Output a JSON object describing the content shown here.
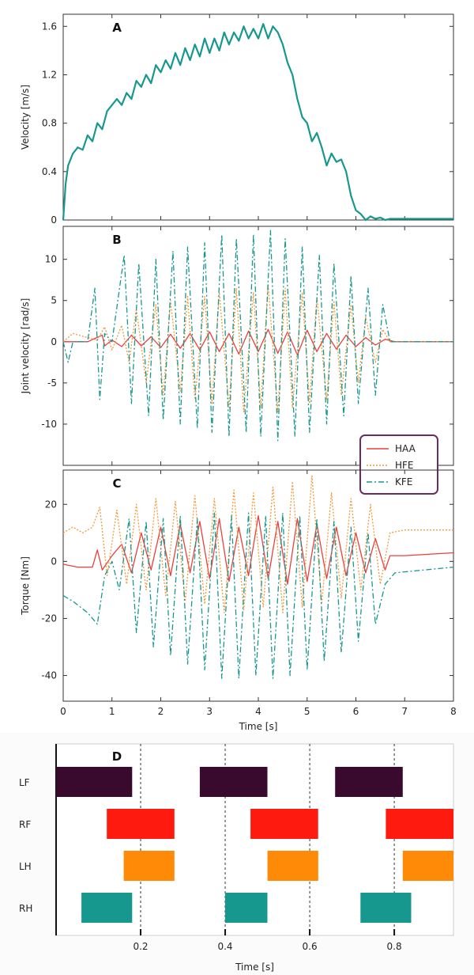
{
  "chart_data": [
    {
      "panel": "A",
      "type": "line",
      "ylabel": "Velocity [m/s]",
      "xlim": [
        0,
        8
      ],
      "ylim": [
        0,
        1.7
      ],
      "yticks": [
        0,
        0.4,
        0.8,
        1.2,
        1.6
      ],
      "xticks": [
        0,
        1,
        2,
        3,
        4,
        5,
        6,
        7,
        8
      ],
      "series": [
        {
          "name": "",
          "color": "#17988f",
          "x": [
            0,
            0.05,
            0.1,
            0.2,
            0.3,
            0.4,
            0.5,
            0.6,
            0.7,
            0.8,
            0.9,
            1.0,
            1.1,
            1.2,
            1.3,
            1.4,
            1.5,
            1.6,
            1.7,
            1.8,
            1.9,
            2.0,
            2.1,
            2.2,
            2.3,
            2.4,
            2.5,
            2.6,
            2.7,
            2.8,
            2.9,
            3.0,
            3.1,
            3.2,
            3.3,
            3.4,
            3.5,
            3.6,
            3.7,
            3.8,
            3.9,
            4.0,
            4.1,
            4.2,
            4.3,
            4.4,
            4.5,
            4.6,
            4.7,
            4.8,
            4.9,
            5.0,
            5.1,
            5.2,
            5.3,
            5.4,
            5.5,
            5.6,
            5.7,
            5.8,
            5.9,
            6.0,
            6.1,
            6.2,
            6.3,
            6.4,
            6.5,
            6.6,
            6.7,
            7.0,
            7.5,
            8.0
          ],
          "y": [
            0,
            0.3,
            0.45,
            0.55,
            0.6,
            0.58,
            0.7,
            0.65,
            0.8,
            0.75,
            0.9,
            0.95,
            1.0,
            0.95,
            1.05,
            1.0,
            1.15,
            1.1,
            1.2,
            1.13,
            1.28,
            1.22,
            1.32,
            1.25,
            1.38,
            1.28,
            1.42,
            1.32,
            1.45,
            1.35,
            1.5,
            1.38,
            1.5,
            1.4,
            1.55,
            1.45,
            1.55,
            1.48,
            1.6,
            1.5,
            1.58,
            1.5,
            1.62,
            1.5,
            1.6,
            1.55,
            1.45,
            1.3,
            1.2,
            1.0,
            0.85,
            0.8,
            0.65,
            0.72,
            0.6,
            0.45,
            0.55,
            0.48,
            0.5,
            0.4,
            0.2,
            0.08,
            0.05,
            0.0,
            0.03,
            0.01,
            0.02,
            0.0,
            0.01,
            0.01,
            0.01,
            0.01
          ]
        }
      ]
    },
    {
      "panel": "B",
      "type": "line",
      "ylabel": "Joint velocity [rad/s]",
      "xlim": [
        0,
        8
      ],
      "ylim": [
        -15,
        14
      ],
      "yticks": [
        -10,
        -5,
        0,
        5,
        10
      ],
      "xticks": [
        0,
        1,
        2,
        3,
        4,
        5,
        6,
        7,
        8
      ],
      "legend": {
        "placement": "bottom-right",
        "entries": [
          "HAA",
          "HFE",
          "KFE"
        ]
      },
      "series": [
        {
          "name": "HAA",
          "color": "#e8403f",
          "dash": "solid",
          "x": [
            0,
            0.5,
            0.8,
            0.85,
            1.0,
            1.2,
            1.4,
            1.6,
            1.8,
            2.0,
            2.2,
            2.4,
            2.6,
            2.8,
            3.0,
            3.2,
            3.4,
            3.6,
            3.8,
            4.0,
            4.2,
            4.4,
            4.6,
            4.8,
            5.0,
            5.2,
            5.4,
            5.6,
            5.8,
            6.0,
            6.2,
            6.4,
            6.6,
            6.8,
            8.0
          ],
          "y": [
            0,
            0,
            0.8,
            -0.5,
            0.2,
            -0.6,
            0.8,
            -0.5,
            0.6,
            -0.7,
            0.9,
            -0.8,
            1.0,
            -1.0,
            1.2,
            -1.2,
            1.0,
            -1.5,
            1.3,
            -1.2,
            1.5,
            -1.4,
            1.2,
            -1.6,
            1.4,
            -1.2,
            1.0,
            -0.9,
            0.8,
            -0.6,
            0.5,
            -0.4,
            0.3,
            0,
            0
          ]
        },
        {
          "name": "HFE",
          "color": "#f39a3a",
          "dash": "dotted",
          "x": [
            0,
            0.2,
            0.5,
            0.7,
            0.85,
            1.0,
            1.2,
            1.35,
            1.5,
            1.7,
            1.9,
            2.05,
            2.2,
            2.4,
            2.55,
            2.7,
            2.9,
            3.05,
            3.2,
            3.4,
            3.55,
            3.7,
            3.9,
            4.05,
            4.2,
            4.4,
            4.55,
            4.7,
            4.9,
            5.05,
            5.2,
            5.4,
            5.55,
            5.7,
            5.9,
            6.05,
            6.2,
            6.4,
            6.55,
            6.7,
            8.0
          ],
          "y": [
            0,
            1.0,
            0.5,
            0.2,
            1.8,
            -1.0,
            2.0,
            -2.5,
            4.0,
            -5.0,
            4.5,
            -6.5,
            5.0,
            -6.0,
            5.5,
            -7.0,
            5.5,
            -7.5,
            6.0,
            -8.0,
            6.5,
            -8.5,
            6.0,
            -8.0,
            7.0,
            -8.5,
            6.5,
            -8.0,
            6.0,
            -7.5,
            5.5,
            -7.0,
            5.0,
            -6.5,
            4.5,
            -5.0,
            3.0,
            -2.5,
            1.5,
            0,
            0
          ]
        },
        {
          "name": "KFE",
          "color": "#17988f",
          "dash": "dashdot",
          "x": [
            0,
            0.1,
            0.2,
            0.5,
            0.65,
            0.75,
            0.85,
            1.0,
            1.25,
            1.4,
            1.55,
            1.75,
            1.9,
            2.05,
            2.25,
            2.4,
            2.55,
            2.75,
            2.9,
            3.05,
            3.25,
            3.4,
            3.55,
            3.75,
            3.9,
            4.05,
            4.25,
            4.4,
            4.55,
            4.75,
            4.9,
            5.05,
            5.25,
            5.4,
            5.55,
            5.75,
            5.9,
            6.05,
            6.25,
            6.4,
            6.55,
            6.7,
            8.0
          ],
          "y": [
            0,
            -2.5,
            0,
            0,
            6.5,
            -7.0,
            1.0,
            0,
            10.5,
            -7.5,
            9.5,
            -9.0,
            10.0,
            -9.5,
            11.0,
            -10.0,
            11.5,
            -10.5,
            12.0,
            -11.0,
            13.0,
            -11.5,
            12.5,
            -11.0,
            13.0,
            -11.5,
            13.5,
            -12.0,
            12.5,
            -11.5,
            11.5,
            -11.0,
            10.5,
            -10.0,
            9.5,
            -9.0,
            8.0,
            -7.5,
            6.5,
            -6.5,
            4.5,
            0,
            0
          ]
        }
      ]
    },
    {
      "panel": "C",
      "type": "line",
      "ylabel": "Torque [Nm]",
      "xlabel": "Time [s]",
      "xlim": [
        0,
        8
      ],
      "ylim": [
        -49,
        32
      ],
      "yticks": [
        -40,
        -20,
        0,
        20
      ],
      "xticks": [
        0,
        1,
        2,
        3,
        4,
        5,
        6,
        7,
        8
      ],
      "series": [
        {
          "name": "HAA",
          "color": "#e8403f",
          "dash": "solid",
          "x": [
            0,
            0.3,
            0.6,
            0.7,
            0.8,
            1.0,
            1.2,
            1.4,
            1.6,
            1.8,
            2.0,
            2.2,
            2.4,
            2.6,
            2.8,
            3.0,
            3.2,
            3.4,
            3.6,
            3.8,
            4.0,
            4.2,
            4.4,
            4.6,
            4.8,
            5.0,
            5.2,
            5.4,
            5.6,
            5.8,
            6.0,
            6.2,
            6.4,
            6.6,
            6.7,
            7.0,
            8.0
          ],
          "y": [
            -1,
            -2,
            -2,
            4,
            -3,
            2,
            6,
            -4,
            10,
            -3,
            12,
            -5,
            13,
            -4,
            14,
            -6,
            15,
            -7,
            12,
            -5,
            16,
            -6,
            14,
            -8,
            15,
            -7,
            13,
            -6,
            12,
            -5,
            10,
            -4,
            8,
            -3,
            2,
            2,
            3
          ]
        },
        {
          "name": "HFE",
          "color": "#f39a3a",
          "dash": "dotted",
          "x": [
            0,
            0.2,
            0.4,
            0.6,
            0.75,
            0.9,
            1.1,
            1.3,
            1.5,
            1.7,
            1.9,
            2.1,
            2.3,
            2.5,
            2.7,
            2.9,
            3.1,
            3.3,
            3.5,
            3.7,
            3.9,
            4.1,
            4.3,
            4.5,
            4.7,
            4.9,
            5.1,
            5.3,
            5.5,
            5.7,
            5.9,
            6.1,
            6.3,
            6.5,
            6.7,
            7.0,
            8.0
          ],
          "y": [
            10,
            12,
            10,
            12,
            19,
            -5,
            18,
            -8,
            20,
            -10,
            22,
            -12,
            21,
            -14,
            23,
            -15,
            22,
            -18,
            25,
            -17,
            24,
            -16,
            26,
            -18,
            28,
            -16,
            30,
            -15,
            24,
            -13,
            22,
            -10,
            20,
            -8,
            10,
            11,
            11
          ]
        },
        {
          "name": "KFE",
          "color": "#17988f",
          "dash": "dashdot",
          "x": [
            0,
            0.2,
            0.5,
            0.7,
            0.85,
            1.0,
            1.15,
            1.35,
            1.5,
            1.7,
            1.85,
            2.05,
            2.2,
            2.4,
            2.55,
            2.75,
            2.9,
            3.1,
            3.25,
            3.45,
            3.6,
            3.8,
            3.95,
            4.15,
            4.3,
            4.5,
            4.65,
            4.85,
            5.0,
            5.2,
            5.35,
            5.55,
            5.7,
            5.9,
            6.05,
            6.25,
            6.4,
            6.6,
            6.8,
            8.0
          ],
          "y": [
            -12,
            -14,
            -18,
            -22,
            -5,
            0,
            -10,
            15,
            -25,
            14,
            -30,
            15,
            -33,
            16,
            -36,
            15,
            -38,
            17,
            -41,
            16,
            -41,
            17,
            -40,
            16,
            -41,
            17,
            -40,
            16,
            -38,
            15,
            -35,
            14,
            -32,
            12,
            -28,
            10,
            -22,
            -8,
            -4,
            -2
          ]
        }
      ]
    },
    {
      "panel": "D",
      "type": "gantt",
      "xlabel": "Time [s]",
      "xlim": [
        0,
        0.94
      ],
      "xticks": [
        0.2,
        0.4,
        0.6,
        0.8
      ],
      "xtick_labels": [
        "0.2",
        "0.4",
        "0.6",
        "0.8"
      ],
      "dashed_lines_at": [
        0.2,
        0.4,
        0.6,
        0.8
      ],
      "rows": [
        {
          "label": "LF",
          "color": "#3a0a2e",
          "intervals": [
            [
              0,
              0.18
            ],
            [
              0.34,
              0.5
            ],
            [
              0.66,
              0.82
            ]
          ]
        },
        {
          "label": "RF",
          "color": "#ff1a0f",
          "intervals": [
            [
              0.12,
              0.28
            ],
            [
              0.46,
              0.62
            ],
            [
              0.78,
              0.94
            ]
          ]
        },
        {
          "label": "LH",
          "color": "#ff8a08",
          "intervals": [
            [
              0.16,
              0.28
            ],
            [
              0.5,
              0.62
            ],
            [
              0.82,
              0.94
            ]
          ]
        },
        {
          "label": "RH",
          "color": "#17988f",
          "intervals": [
            [
              0.06,
              0.18
            ],
            [
              0.4,
              0.5
            ],
            [
              0.72,
              0.84
            ]
          ]
        }
      ]
    }
  ]
}
